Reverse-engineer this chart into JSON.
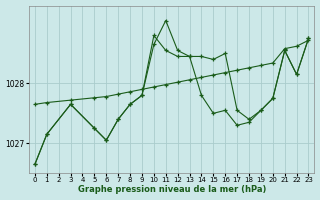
{
  "xlabel": "Graphe pression niveau de la mer (hPa)",
  "bg_color": "#cce8e8",
  "grid_color": "#aacccc",
  "line_color": "#1a5c1a",
  "xlim": [
    -0.5,
    23.5
  ],
  "ylim": [
    1026.5,
    1029.3
  ],
  "yticks": [
    1027,
    1028
  ],
  "xticks": [
    0,
    1,
    2,
    3,
    4,
    5,
    6,
    7,
    8,
    9,
    10,
    11,
    12,
    13,
    14,
    15,
    16,
    17,
    18,
    19,
    20,
    21,
    22,
    23
  ],
  "series": [
    {
      "x": [
        0,
        1,
        3,
        5,
        6,
        7,
        8,
        9,
        10,
        11,
        12,
        13,
        14,
        15,
        16,
        17,
        18,
        19,
        20,
        21,
        22,
        23
      ],
      "y": [
        1027.65,
        1027.68,
        1027.72,
        1027.76,
        1027.78,
        1027.82,
        1027.86,
        1027.9,
        1027.94,
        1027.98,
        1028.02,
        1028.06,
        1028.1,
        1028.14,
        1028.18,
        1028.22,
        1028.26,
        1028.3,
        1028.34,
        1028.58,
        1028.62,
        1028.72
      ]
    },
    {
      "x": [
        0,
        1,
        3,
        5,
        6,
        7,
        8,
        9,
        10,
        11,
        12,
        13,
        14,
        15,
        16,
        17,
        18,
        19,
        20,
        21,
        22,
        23
      ],
      "y": [
        1026.65,
        1027.15,
        1027.65,
        1027.25,
        1027.05,
        1027.4,
        1027.65,
        1027.8,
        1028.65,
        1029.05,
        1028.55,
        1028.45,
        1028.45,
        1028.4,
        1028.5,
        1027.55,
        1027.4,
        1027.55,
        1027.75,
        1028.55,
        1028.15,
        1028.75
      ]
    },
    {
      "x": [
        0,
        1,
        3,
        5,
        6,
        7,
        8,
        9,
        10,
        11,
        12,
        13,
        14,
        15,
        16,
        17,
        18,
        19,
        20,
        21,
        22,
        23
      ],
      "y": [
        1026.65,
        1027.15,
        1027.65,
        1027.25,
        1027.05,
        1027.4,
        1027.65,
        1027.8,
        1028.8,
        1028.55,
        1028.45,
        1028.45,
        1027.8,
        1027.5,
        1027.55,
        1027.3,
        1027.35,
        1027.55,
        1027.75,
        1028.55,
        1028.15,
        1028.75
      ]
    }
  ]
}
